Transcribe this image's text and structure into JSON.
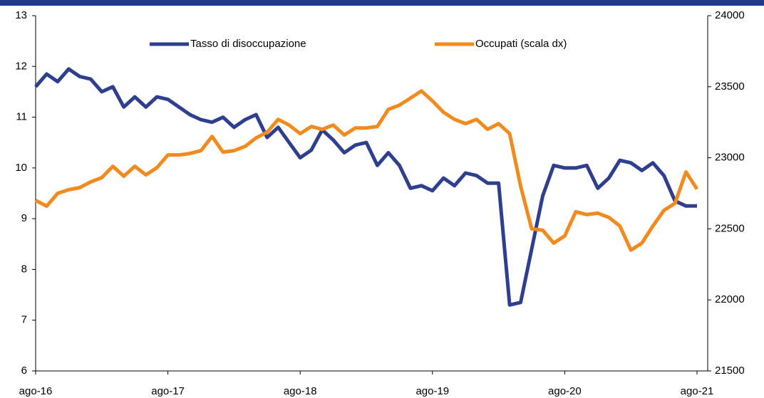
{
  "chart_data": {
    "type": "line",
    "categories": [
      "ago-16",
      null,
      null,
      null,
      null,
      null,
      null,
      null,
      null,
      null,
      null,
      null,
      "ago-17",
      null,
      null,
      null,
      null,
      null,
      null,
      null,
      null,
      null,
      null,
      null,
      "ago-18",
      null,
      null,
      null,
      null,
      null,
      null,
      null,
      null,
      null,
      null,
      null,
      "ago-19",
      null,
      null,
      null,
      null,
      null,
      null,
      null,
      null,
      null,
      null,
      null,
      "ago-20",
      null,
      null,
      null,
      null,
      null,
      null,
      null,
      null,
      null,
      null,
      null,
      "ago-21"
    ],
    "series": [
      {
        "name": "Tasso di disoccupazione",
        "color": "#2e3f8f",
        "axis": "y",
        "values": [
          11.6,
          11.85,
          11.7,
          11.95,
          11.8,
          11.75,
          11.5,
          11.6,
          11.2,
          11.4,
          11.2,
          11.4,
          11.35,
          11.2,
          11.05,
          10.95,
          10.9,
          11.0,
          10.8,
          10.95,
          11.05,
          10.6,
          10.8,
          10.5,
          10.2,
          10.35,
          10.75,
          10.55,
          10.3,
          10.45,
          10.5,
          10.05,
          10.3,
          10.05,
          9.6,
          9.65,
          9.55,
          9.8,
          9.65,
          9.9,
          9.85,
          9.7,
          9.7,
          7.3,
          7.35,
          8.4,
          9.45,
          10.05,
          10.0,
          10.0,
          10.05,
          9.6,
          9.8,
          10.15,
          10.1,
          9.95,
          10.1,
          9.85,
          9.35,
          9.25,
          9.25
        ]
      },
      {
        "name": "Occupati (scala dx)",
        "color": "#f28a1e",
        "axis": "y2",
        "values": [
          22700,
          22660,
          22750,
          22775,
          22790,
          22830,
          22860,
          22940,
          22870,
          22940,
          22880,
          22930,
          23020,
          23020,
          23030,
          23050,
          23150,
          23040,
          23050,
          23080,
          23140,
          23180,
          23270,
          23230,
          23170,
          23220,
          23200,
          23230,
          23160,
          23210,
          23210,
          23220,
          23340,
          23370,
          23420,
          23470,
          23400,
          23320,
          23270,
          23240,
          23270,
          23200,
          23240,
          23170,
          22800,
          22500,
          22490,
          22400,
          22450,
          22620,
          22600,
          22610,
          22580,
          22520,
          22350,
          22400,
          22520,
          22630,
          22680,
          22900,
          22780
        ]
      }
    ],
    "ylim": [
      6,
      13
    ],
    "yticks": [
      6,
      7,
      8,
      9,
      10,
      11,
      12,
      13
    ],
    "y2lim": [
      21500,
      24000
    ],
    "y2ticks": [
      21500,
      22000,
      22500,
      23000,
      23500,
      24000
    ],
    "legend": "top"
  }
}
